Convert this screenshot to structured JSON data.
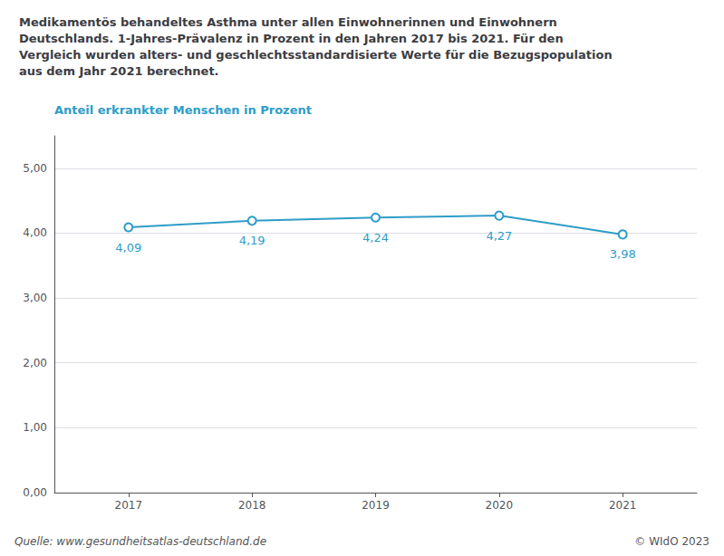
{
  "chart_data": {
    "type": "line",
    "title": "Medikamentös behandeltes Asthma unter allen Einwohnerinnen und Einwohnern\nDeutschlands. 1-Jahres-Prävalenz in Prozent in den Jahren 2017 bis 2021. Für den\nVergleich wurden alters- und geschlechtsstandardisierte Werte für die Bezugspopulation\naus dem Jahr 2021 berechnet.",
    "ylabel": "Anteil erkrankter Menschen in Prozent",
    "x": [
      2017,
      2018,
      2019,
      2020,
      2021
    ],
    "values": [
      4.09,
      4.19,
      4.24,
      4.27,
      3.98
    ],
    "value_labels": [
      "4,09",
      "4,19",
      "4,24",
      "4,27",
      "3,98"
    ],
    "data_labels": true,
    "color": "#2E9DC8",
    "marker": "circle",
    "xlim": [
      2016.4,
      2021.6
    ],
    "xticks": [
      2017,
      2018,
      2019,
      2020,
      2021
    ],
    "ylim": [
      0,
      5.5
    ],
    "yticks": [
      {
        "value": 0,
        "label": "0,00"
      },
      {
        "value": 1,
        "label": "1,00"
      },
      {
        "value": 2,
        "label": "2,00"
      },
      {
        "value": 3,
        "label": "3,00"
      },
      {
        "value": 4,
        "label": "4,00"
      },
      {
        "value": 5,
        "label": "5,00"
      }
    ],
    "grid": true,
    "annotations": [
      "Quelle: www.gesundheitsatlas-deutschland.de",
      "© WIdO 2023"
    ]
  }
}
